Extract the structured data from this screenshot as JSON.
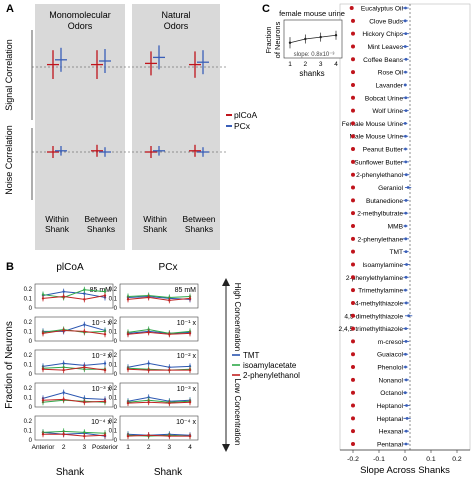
{
  "colors": {
    "plCoA": "#c0141c",
    "PCx": "#3a5fb8",
    "TMT": "#2a55b0",
    "isoamylacetate": "#2fa84a",
    "phenylethanol2": "#c22222",
    "panel_bg": "#d9d9d9",
    "axis": "#333333"
  },
  "panel_labels": [
    "A",
    "B",
    "C"
  ],
  "panel_a": {
    "group_titles": [
      "Monomolecular\nOdors",
      "Natural\nOdors"
    ],
    "group_titles_lines": [
      [
        "Monomolecular",
        "Odors"
      ],
      [
        "Natural",
        "Odors"
      ]
    ],
    "x_labels": [
      [
        "Within",
        "Shank"
      ],
      [
        "Between",
        "Shanks"
      ],
      [
        "Within",
        "Shank"
      ],
      [
        "Between",
        "Shanks"
      ]
    ],
    "top_ylabel": "Signal Correlation",
    "bottom_ylabel": "Noise Correlation",
    "legend": [
      "plCoA",
      "PCx"
    ]
  },
  "panel_b": {
    "titles": [
      "plCoA",
      "PCx"
    ],
    "ylabel": "Fraction of Neurons",
    "xlabel": "Shank",
    "xticks": [
      "Anterior",
      "2",
      "3",
      "Posterior"
    ],
    "xticks_right": [
      "1",
      "2",
      "3",
      "4"
    ],
    "yticks": [
      "0",
      "0.1",
      "0.2"
    ],
    "concentrations": [
      "85 mM",
      "10⁻¹ x",
      "10⁻² x",
      "10⁻³ x",
      "10⁻⁴ x"
    ],
    "high_label": "High Concentration",
    "low_label": "Low Concentration",
    "legend": [
      "TMT",
      "isoamylacetate",
      "2-phenylethanol"
    ]
  },
  "panel_c": {
    "inset_title": "female mouse urine",
    "inset_ylabel": [
      "Fraction",
      "of Neurons"
    ],
    "inset_xlabel": "shanks",
    "inset_xticks": [
      "1",
      "2",
      "3",
      "4"
    ],
    "inset_slope": "slope: 0.8x10⁻³",
    "xlabel": "Slope Across Shanks",
    "xticks": [
      "-0.2",
      "-0.1",
      "0",
      "0.1",
      "0.2"
    ]
  },
  "chart_data": [
    {
      "type": "scatter",
      "panel": "A-top",
      "ylabel": "Signal Correlation",
      "categories": [
        "Within Shank",
        "Between Shanks",
        "Within Shank",
        "Between Shanks"
      ],
      "series": [
        {
          "name": "plCoA",
          "values": [
            0.02,
            0.02,
            0.03,
            0.02
          ],
          "error": [
            0.12,
            0.12,
            0.1,
            0.11
          ]
        },
        {
          "name": "PCx",
          "values": [
            0.06,
            0.05,
            0.08,
            0.04
          ],
          "error": [
            0.1,
            0.1,
            0.1,
            0.1
          ]
        }
      ],
      "ylim": [
        -0.35,
        0.35
      ]
    },
    {
      "type": "scatter",
      "panel": "A-bottom",
      "ylabel": "Noise Correlation",
      "categories": [
        "Within Shank",
        "Between Shanks",
        "Within Shank",
        "Between Shanks"
      ],
      "series": [
        {
          "name": "plCoA",
          "values": [
            0.0,
            0.01,
            0.0,
            0.01
          ],
          "error": [
            0.05,
            0.05,
            0.05,
            0.05
          ]
        },
        {
          "name": "PCx",
          "values": [
            0.01,
            0.0,
            0.01,
            0.0
          ],
          "error": [
            0.04,
            0.04,
            0.04,
            0.04
          ]
        }
      ],
      "ylim": [
        -0.35,
        0.35
      ]
    },
    {
      "type": "line",
      "panel": "B",
      "x": [
        1,
        2,
        3,
        4
      ],
      "ylim": [
        0,
        0.25
      ],
      "rows": [
        "85 mM",
        "10⁻¹ x",
        "10⁻² x",
        "10⁻³ x",
        "10⁻⁴ x"
      ],
      "plCoA": [
        {
          "TMT": [
            0.13,
            0.17,
            0.15,
            0.11
          ],
          "isoamylacetate": [
            0.14,
            0.11,
            0.19,
            0.17
          ],
          "2-phenylethanol": [
            0.1,
            0.12,
            0.09,
            0.13
          ]
        },
        {
          "TMT": [
            0.1,
            0.1,
            0.17,
            0.11
          ],
          "isoamylacetate": [
            0.09,
            0.12,
            0.09,
            0.1
          ],
          "2-phenylethanol": [
            0.08,
            0.11,
            0.1,
            0.07
          ]
        },
        {
          "TMT": [
            0.08,
            0.11,
            0.09,
            0.11
          ],
          "isoamylacetate": [
            0.06,
            0.07,
            0.05,
            0.05
          ],
          "2-phenylethanol": [
            0.05,
            0.04,
            0.07,
            0.04
          ]
        },
        {
          "TMT": [
            0.09,
            0.15,
            0.09,
            0.08
          ],
          "isoamylacetate": [
            0.05,
            0.07,
            0.06,
            0.05
          ],
          "2-phenylethanol": [
            0.07,
            0.08,
            0.05,
            0.06
          ]
        },
        {
          "TMT": [
            0.08,
            0.06,
            0.07,
            0.04
          ],
          "isoamylacetate": [
            0.08,
            0.09,
            0.08,
            0.07
          ],
          "2-phenylethanol": [
            0.06,
            0.06,
            0.04,
            0.05
          ]
        }
      ],
      "PCx": [
        {
          "TMT": [
            0.11,
            0.12,
            0.1,
            0.09
          ],
          "isoamylacetate": [
            0.12,
            0.13,
            0.11,
            0.12
          ],
          "2-phenylethanol": [
            0.09,
            0.11,
            0.08,
            0.1
          ]
        },
        {
          "TMT": [
            0.08,
            0.1,
            0.08,
            0.09
          ],
          "isoamylacetate": [
            0.09,
            0.12,
            0.08,
            0.1
          ],
          "2-phenylethanol": [
            0.07,
            0.09,
            0.07,
            0.08
          ]
        },
        {
          "TMT": [
            0.07,
            0.11,
            0.07,
            0.08
          ],
          "isoamylacetate": [
            0.06,
            0.05,
            0.04,
            0.05
          ],
          "2-phenylethanol": [
            0.05,
            0.04,
            0.04,
            0.04
          ]
        },
        {
          "TMT": [
            0.06,
            0.1,
            0.06,
            0.07
          ],
          "isoamylacetate": [
            0.05,
            0.07,
            0.05,
            0.06
          ],
          "2-phenylethanol": [
            0.04,
            0.05,
            0.04,
            0.05
          ]
        },
        {
          "TMT": [
            0.06,
            0.05,
            0.06,
            0.05
          ],
          "isoamylacetate": [
            0.05,
            0.04,
            0.05,
            0.04
          ],
          "2-phenylethanol": [
            0.04,
            0.05,
            0.04,
            0.04
          ]
        }
      ],
      "legend": [
        "TMT",
        "isoamylacetate",
        "2-phenylethanol"
      ]
    },
    {
      "type": "scatter",
      "panel": "C",
      "xlabel": "Slope Across Shanks",
      "xlim": [
        -0.25,
        0.25
      ],
      "categories": [
        "Eucalyptus Oil",
        "Clove Buds",
        "Hickory Chips",
        "Mint Leaves",
        "Coffee Beans",
        "Rose Oil",
        "Lavander",
        "Bobcat Urine",
        "Wolf Urine",
        "Female Mouse Urine",
        "Male Mouse Urine",
        "Peanut Butter",
        "Sunflower Butter",
        "2-phenylethanol",
        "Geraniol",
        "Butanedione",
        "2-methylbutrate",
        "MMB",
        "2-phenylethane",
        "TMT",
        "Isoamylamine",
        "2-phenylethylamine",
        "Trimethylamine",
        "4-methylthiazole",
        "4,5-dimethylthiazole",
        "2,4,5-trimethylthiazole",
        "m-cresol",
        "Guaiacol",
        "Phenolol",
        "Nonanol",
        "Octanol",
        "Heptanol",
        "Heptanal",
        "Hexanal",
        "Pentanal"
      ],
      "series": [
        {
          "name": "plCoA",
          "values": [
            -0.205,
            -0.2,
            -0.2,
            -0.2,
            -0.2,
            -0.2,
            -0.2,
            -0.2,
            -0.2,
            -0.2,
            -0.2,
            -0.2,
            -0.2,
            -0.2,
            -0.2,
            -0.2,
            -0.2,
            -0.2,
            -0.2,
            -0.2,
            -0.2,
            -0.2,
            -0.2,
            -0.2,
            -0.2,
            -0.2,
            -0.2,
            -0.2,
            -0.2,
            -0.2,
            -0.2,
            -0.2,
            -0.2,
            -0.2,
            -0.2
          ]
        },
        {
          "name": "PCx",
          "values": [
            0.002,
            0.001,
            0.003,
            0.001,
            0.004,
            0.002,
            0.001,
            0.003,
            0.004,
            0.001,
            0.002,
            0.002,
            0.003,
            0.005,
            0.012,
            0.004,
            0.003,
            0.002,
            0.003,
            0.004,
            0.006,
            0.004,
            0.002,
            0.005,
            0.014,
            0.003,
            0.004,
            0.002,
            0.002,
            0.005,
            0.001,
            0.006,
            0.008,
            0.005,
            0.004
          ],
          "error": [
            0.012,
            0.01,
            0.012,
            0.012,
            0.01,
            0.008,
            0.006,
            0.012,
            0.01,
            0.008,
            0.01,
            0.008,
            0.012,
            0.012,
            0.012,
            0.01,
            0.01,
            0.008,
            0.012,
            0.01,
            0.012,
            0.01,
            0.008,
            0.012,
            0.014,
            0.01,
            0.012,
            0.01,
            0.008,
            0.01,
            0.008,
            0.012,
            0.014,
            0.01,
            0.012
          ]
        }
      ]
    },
    {
      "type": "line",
      "panel": "C-inset",
      "title": "female mouse urine",
      "x": [
        1,
        2,
        3,
        4
      ],
      "values": [
        0.03,
        0.04,
        0.045,
        0.05
      ],
      "error": [
        0.015,
        0.012,
        0.012,
        0.012
      ]
    }
  ]
}
